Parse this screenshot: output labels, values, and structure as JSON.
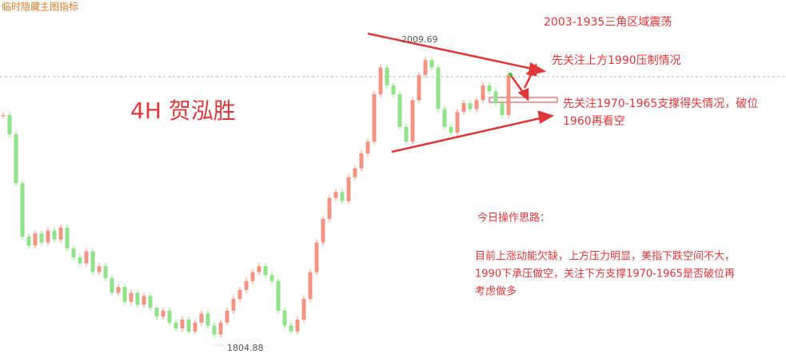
{
  "chart_data": {
    "type": "candlestick",
    "toolbar": "临时隐藏主图指标",
    "title": "4H  贺泓胜",
    "values": [
      1958,
      1945,
      1912,
      1876,
      1870,
      1878,
      1872,
      1880,
      1874,
      1882,
      1868,
      1862,
      1858,
      1866,
      1852,
      1856,
      1848,
      1838,
      1842,
      1832,
      1838,
      1830,
      1836,
      1828,
      1822,
      1826,
      1818,
      1814,
      1820,
      1812,
      1818,
      1824,
      1816,
      1810,
      1818,
      1826,
      1834,
      1840,
      1846,
      1852,
      1856,
      1850,
      1846,
      1826,
      1816,
      1812,
      1820,
      1834,
      1852,
      1872,
      1888,
      1902,
      1906,
      1900,
      1916,
      1922,
      1932,
      1940,
      1972,
      1990,
      1978,
      1972,
      1950,
      1940,
      1968,
      1985,
      1995,
      1990,
      1962,
      1950,
      1946,
      1960,
      1966,
      1962,
      1968,
      1978,
      1974,
      1966,
      1958,
      1985
    ],
    "high": 2009.69,
    "low": 1804.88,
    "colors": {
      "up": "#f29483",
      "down": "#8fe388"
    },
    "annotations": [
      "2003-1935三角区域震荡",
      "先关注上方1990压制情况",
      "先关注1970-1965支撑得失情况，破位",
      "1960再看空"
    ],
    "notes": {
      "heading": "今日操作思路：",
      "lines": [
        "目前上涨动能欠缺，上方压力明显，美指下跌空间不大，",
        "1990下承压做空，关注下方支撑1970-1965是否破位再",
        "考虑做多"
      ]
    }
  }
}
